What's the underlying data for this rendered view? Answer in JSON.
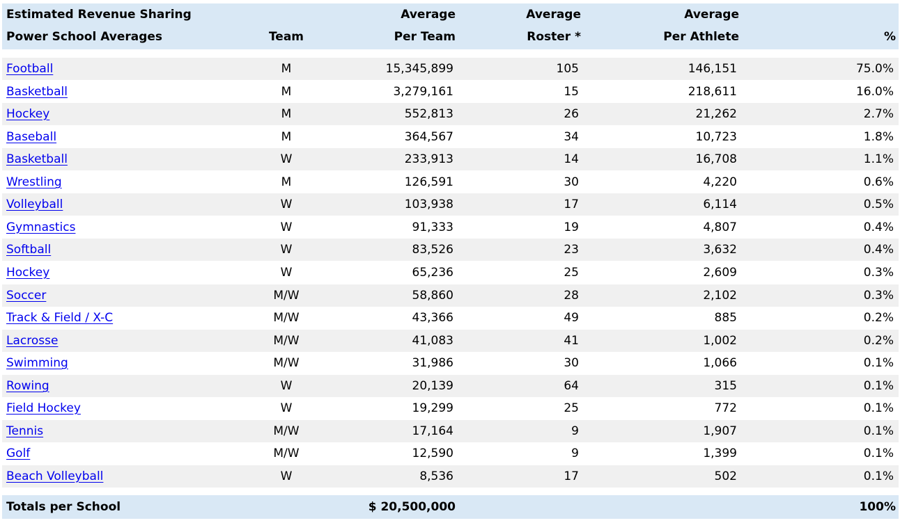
{
  "header": {
    "title_line1": "Estimated Revenue Sharing",
    "title_line2": "Power School Averages",
    "team": "Team",
    "avg_per_team_line1": "Average",
    "avg_per_team_line2": "Per Team",
    "avg_roster_line1": "Average",
    "avg_roster_line2": "Roster *",
    "avg_per_athlete_line1": "Average",
    "avg_per_athlete_line2": "Per Athlete",
    "pct": "%"
  },
  "rows": [
    {
      "sport": "Football",
      "team": "M",
      "per_team": "15,345,899",
      "roster": "105",
      "per_athlete": "146,151",
      "pct": "75.0%"
    },
    {
      "sport": "Basketball",
      "team": "M",
      "per_team": "3,279,161",
      "roster": "15",
      "per_athlete": "218,611",
      "pct": "16.0%"
    },
    {
      "sport": "Hockey",
      "team": "M",
      "per_team": "552,813",
      "roster": "26",
      "per_athlete": "21,262",
      "pct": "2.7%"
    },
    {
      "sport": "Baseball",
      "team": "M",
      "per_team": "364,567",
      "roster": "34",
      "per_athlete": "10,723",
      "pct": "1.8%"
    },
    {
      "sport": "Basketball",
      "team": "W",
      "per_team": "233,913",
      "roster": "14",
      "per_athlete": "16,708",
      "pct": "1.1%"
    },
    {
      "sport": "Wrestling",
      "team": "M",
      "per_team": "126,591",
      "roster": "30",
      "per_athlete": "4,220",
      "pct": "0.6%"
    },
    {
      "sport": "Volleyball",
      "team": "W",
      "per_team": "103,938",
      "roster": "17",
      "per_athlete": "6,114",
      "pct": "0.5%"
    },
    {
      "sport": "Gymnastics",
      "team": "W",
      "per_team": "91,333",
      "roster": "19",
      "per_athlete": "4,807",
      "pct": "0.4%"
    },
    {
      "sport": "Softball",
      "team": "W",
      "per_team": "83,526",
      "roster": "23",
      "per_athlete": "3,632",
      "pct": "0.4%"
    },
    {
      "sport": "Hockey",
      "team": "W",
      "per_team": "65,236",
      "roster": "25",
      "per_athlete": "2,609",
      "pct": "0.3%"
    },
    {
      "sport": "Soccer",
      "team": "M/W",
      "per_team": "58,860",
      "roster": "28",
      "per_athlete": "2,102",
      "pct": "0.3%"
    },
    {
      "sport": "Track & Field / X-C",
      "team": "M/W",
      "per_team": "43,366",
      "roster": "49",
      "per_athlete": "885",
      "pct": "0.2%"
    },
    {
      "sport": "Lacrosse",
      "team": "M/W",
      "per_team": "41,083",
      "roster": "41",
      "per_athlete": "1,002",
      "pct": "0.2%"
    },
    {
      "sport": "Swimming",
      "team": "M/W",
      "per_team": "31,986",
      "roster": "30",
      "per_athlete": "1,066",
      "pct": "0.1%"
    },
    {
      "sport": "Rowing",
      "team": "W",
      "per_team": "20,139",
      "roster": "64",
      "per_athlete": "315",
      "pct": "0.1%"
    },
    {
      "sport": "Field Hockey",
      "team": "W",
      "per_team": "19,299",
      "roster": "25",
      "per_athlete": "772",
      "pct": "0.1%"
    },
    {
      "sport": "Tennis",
      "team": "M/W",
      "per_team": "17,164",
      "roster": "9",
      "per_athlete": "1,907",
      "pct": "0.1%"
    },
    {
      "sport": "Golf",
      "team": "M/W",
      "per_team": "12,590",
      "roster": "9",
      "per_athlete": "1,399",
      "pct": "0.1%"
    },
    {
      "sport": "Beach Volleyball",
      "team": "W",
      "per_team": "8,536",
      "roster": "17",
      "per_athlete": "502",
      "pct": "0.1%"
    }
  ],
  "totals": {
    "label": "Totals per School",
    "per_team": "$ 20,500,000",
    "pct": "100%"
  },
  "colors": {
    "header_band": "#d9e8f5",
    "stripe": "#f0f0f0",
    "link": "#0000ee"
  }
}
